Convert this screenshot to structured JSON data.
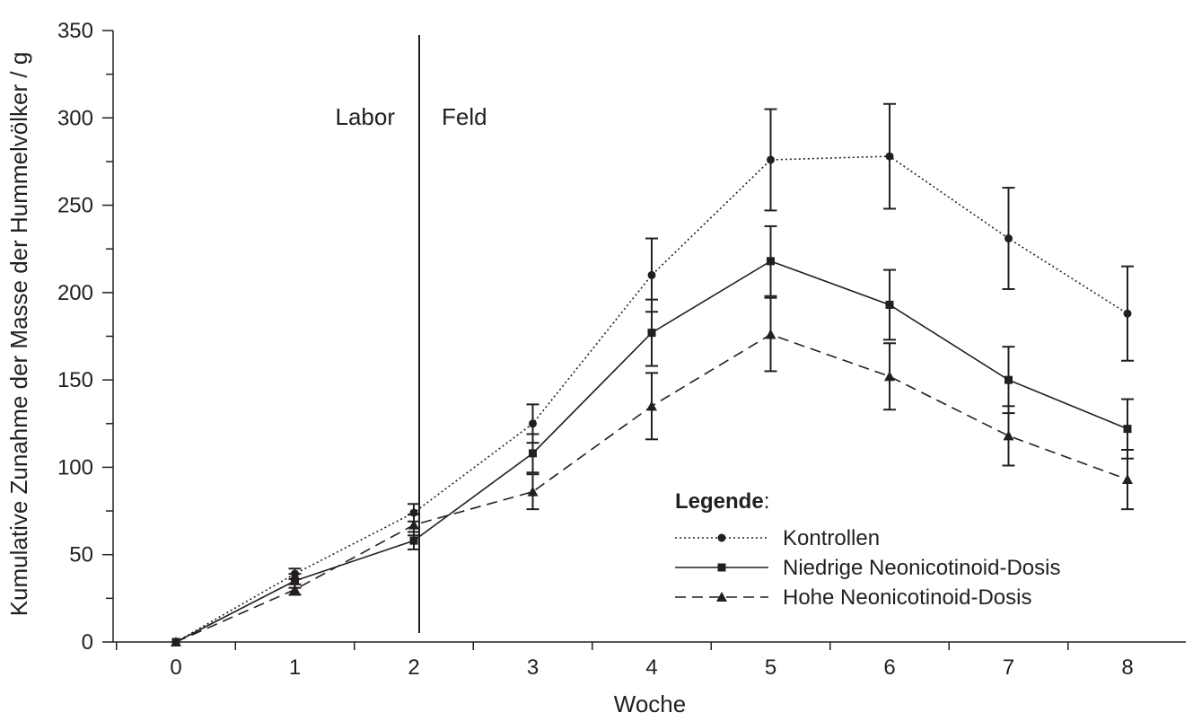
{
  "chart_data": {
    "type": "line",
    "xlabel": "Woche",
    "ylabel": "Kumulative Zunahme der Masse der Hummelvölker / g",
    "xlim": [
      0,
      8
    ],
    "ylim": [
      0,
      350
    ],
    "x": [
      0,
      1,
      2,
      3,
      4,
      5,
      6,
      7,
      8
    ],
    "x_ticks": [
      0,
      1,
      2,
      3,
      4,
      5,
      6,
      7,
      8
    ],
    "y_ticks": [
      0,
      50,
      100,
      150,
      200,
      250,
      300,
      350
    ],
    "grid": false,
    "divider": {
      "x": 2,
      "left_label": "Labor",
      "right_label": "Feld"
    },
    "legend": {
      "heading": "Legende",
      "heading_suffix": ":",
      "position": "bottom-right"
    },
    "series": [
      {
        "name": "Kontrollen",
        "marker": "circle",
        "line_style": "dotted",
        "values": [
          0,
          39,
          74,
          125,
          210,
          276,
          278,
          231,
          188
        ],
        "error": [
          0,
          3,
          5,
          11,
          21,
          29,
          30,
          29,
          27
        ]
      },
      {
        "name": "Niedrige Neonicotinoid-Dosis",
        "marker": "square",
        "line_style": "solid",
        "values": [
          0,
          35,
          58,
          108,
          177,
          218,
          193,
          150,
          122
        ],
        "error": [
          0,
          4,
          5,
          11,
          19,
          20,
          20,
          19,
          17
        ]
      },
      {
        "name": "Hohe Neonicotinoid-Dosis",
        "marker": "triangle",
        "line_style": "dashed",
        "values": [
          0,
          30,
          67,
          86,
          135,
          176,
          152,
          118,
          93
        ],
        "error": [
          0,
          3,
          6,
          10,
          19,
          21,
          19,
          17,
          17
        ]
      }
    ]
  }
}
